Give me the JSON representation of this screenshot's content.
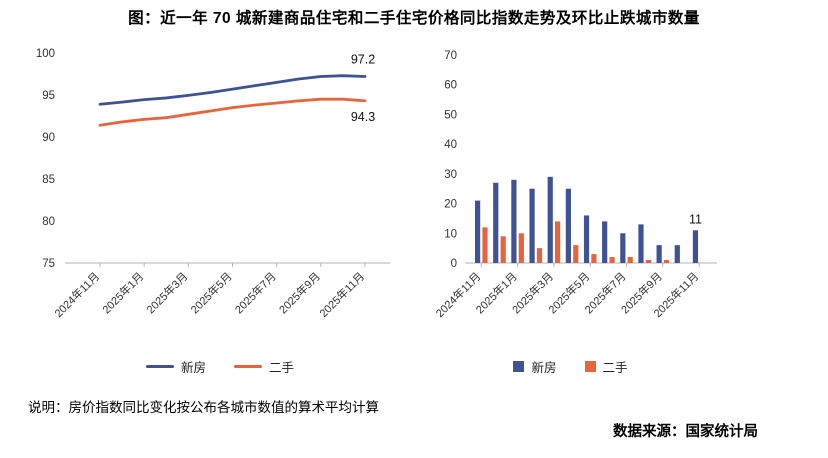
{
  "title": "图：近一年 70 城新建商品住宅和二手住宅价格同比指数走势及环比止跌城市数量",
  "note": "说明：房价指数同比变化按公布各城市数值的算术平均计算",
  "source": "数据来源：国家统计局",
  "colors": {
    "new_home": "#3e5294",
    "second_hand": "#e8643c",
    "axis": "#b5b5b5",
    "tick_text": "#333333",
    "label_text": "#111111"
  },
  "chart_data": [
    {
      "type": "line",
      "x": [
        "2024年11月",
        "2024年12月",
        "2025年1月",
        "2025年2月",
        "2025年3月",
        "2025年4月",
        "2025年5月",
        "2025年6月",
        "2025年7月",
        "2025年8月",
        "2025年9月",
        "2025年10月",
        "2025年11月"
      ],
      "x_tick_step": 2,
      "ylim": [
        75,
        100
      ],
      "yticks": [
        75,
        80,
        85,
        90,
        95,
        100
      ],
      "legend_position": "bottom",
      "series": [
        {
          "name": "新房",
          "color_key": "new_home",
          "values": [
            93.9,
            94.15,
            94.45,
            94.65,
            94.95,
            95.3,
            95.7,
            96.1,
            96.5,
            96.9,
            97.2,
            97.3,
            97.2
          ],
          "end_label": "97.2"
        },
        {
          "name": "二手",
          "color_key": "second_hand",
          "values": [
            91.4,
            91.8,
            92.1,
            92.3,
            92.7,
            93.1,
            93.5,
            93.8,
            94.05,
            94.3,
            94.5,
            94.5,
            94.3
          ],
          "end_label": "94.3"
        }
      ]
    },
    {
      "type": "bar",
      "x": [
        "2024年11月",
        "2024年12月",
        "2025年1月",
        "2025年2月",
        "2025年3月",
        "2025年4月",
        "2025年5月",
        "2025年6月",
        "2025年7月",
        "2025年8月",
        "2025年9月",
        "2025年10月",
        "2025年11月"
      ],
      "x_tick_step": 2,
      "ylim": [
        0,
        70
      ],
      "yticks": [
        0,
        10,
        20,
        30,
        40,
        50,
        60,
        70
      ],
      "legend_position": "bottom",
      "series": [
        {
          "name": "新房",
          "color_key": "new_home",
          "values": [
            21,
            27,
            28,
            25,
            29,
            25,
            16,
            14,
            10,
            13,
            6,
            6,
            11
          ]
        },
        {
          "name": "二手",
          "color_key": "second_hand",
          "values": [
            12,
            9,
            10,
            5,
            14,
            6,
            3,
            2,
            2,
            1,
            1,
            0,
            0
          ]
        }
      ],
      "annotations": [
        {
          "series": 0,
          "index": 12,
          "text": "11"
        }
      ]
    }
  ]
}
